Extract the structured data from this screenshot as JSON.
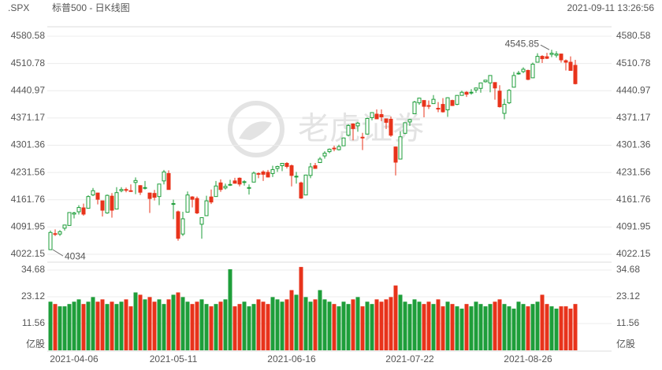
{
  "header": {
    "symbol": ".SPX",
    "title": "标普500 - 日K线图",
    "timestamp": "2021-09-11 13:26:56"
  },
  "watermark": "老虎证券",
  "chart_data": {
    "type": "candlestick",
    "categories": [
      null,
      "2021-04-06",
      null,
      null,
      null,
      null,
      null,
      null,
      null,
      null,
      null,
      null,
      null,
      null,
      null,
      null,
      null,
      null,
      null,
      null,
      null,
      null,
      null,
      null,
      null,
      null,
      "2021-05-11",
      null,
      null,
      null,
      null,
      null,
      null,
      null,
      null,
      null,
      null,
      null,
      null,
      null,
      null,
      null,
      null,
      null,
      null,
      null,
      null,
      null,
      null,
      null,
      null,
      "2021-06-16",
      null,
      null,
      null,
      null,
      null,
      null,
      null,
      null,
      null,
      null,
      null,
      null,
      null,
      null,
      null,
      null,
      null,
      null,
      null,
      null,
      null,
      null,
      null,
      null,
      "2021-07-22",
      null,
      null,
      null,
      null,
      null,
      null,
      null,
      null,
      null,
      null,
      null,
      null,
      null,
      null,
      null,
      null,
      null,
      null,
      null,
      null,
      null,
      null,
      null,
      null,
      "2021-08-26",
      null,
      null,
      null,
      null,
      null,
      null,
      null,
      null,
      null,
      null
    ],
    "open": [
      4034,
      4075,
      4074,
      4089,
      4096,
      4125,
      4131,
      4141,
      4140,
      4174,
      4179,
      4159,
      4128,
      4171,
      4138,
      4185,
      4188,
      4185,
      4206,
      4198,
      4191,
      4179,
      4178,
      4170,
      4210,
      4229,
      4151,
      4131,
      4074,
      4130,
      4169,
      4165,
      4099,
      4121,
      4169,
      4170,
      4205,
      4192,
      4201,
      4210,
      4217,
      4207,
      4191,
      4207,
      4229,
      4233,
      4232,
      4229,
      4242,
      4249,
      4255,
      4249,
      4220,
      4205,
      4174,
      4224,
      4249,
      4257,
      4274,
      4285,
      4294,
      4290,
      4300,
      4327,
      4356,
      4351,
      4322,
      4330,
      4372,
      4381,
      4380,
      4369,
      4368,
      4297,
      4266,
      4332,
      4361,
      4382,
      4410,
      4416,
      4403,
      4408,
      4396,
      4406,
      4392,
      4416,
      4406,
      4429,
      4437,
      4436,
      4443,
      4447,
      4464,
      4461,
      4462,
      4440,
      4383,
      4410,
      4450,
      4484,
      4490,
      4493,
      4474,
      4514,
      4529,
      4528,
      4534,
      4532,
      4535,
      4518,
      4514,
      4506
    ],
    "high": [
      4083,
      4086,
      4084,
      4098,
      4129,
      4131,
      4148,
      4152,
      4173,
      4192,
      4180,
      4159,
      4175,
      4179,
      4194,
      4194,
      4193,
      4201,
      4219,
      4199,
      4210,
      4180,
      4187,
      4202,
      4238,
      4237,
      4162,
      4134,
      4131,
      4183,
      4171,
      4170,
      4117,
      4172,
      4188,
      4210,
      4214,
      4203,
      4213,
      4218,
      4219,
      4212,
      4201,
      4234,
      4232,
      4237,
      4238,
      4249,
      4249,
      4256,
      4258,
      4252,
      4233,
      4208,
      4226,
      4256,
      4256,
      4271,
      4286,
      4293,
      4300,
      4303,
      4321,
      4355,
      4357,
      4361,
      4333,
      4372,
      4386,
      4393,
      4393,
      4370,
      4375,
      4298,
      4337,
      4359,
      4369,
      4415,
      4423,
      4416,
      4416,
      4430,
      4412,
      4422,
      4424,
      4418,
      4429,
      4441,
      4440,
      4445,
      4449,
      4461,
      4468,
      4480,
      4462,
      4455,
      4420,
      4445,
      4489,
      4492,
      4501,
      4495,
      4513,
      4537,
      4532,
      4538,
      4545.85,
      4542,
      4536,
      4521,
      4529,
      4520
    ],
    "low": [
      4034,
      4069,
      4069,
      4083,
      4095,
      4114,
      4124,
      4121,
      4140,
      4171,
      4150,
      4119,
      4126,
      4116,
      4138,
      4181,
      4181,
      4182,
      4176,
      4174,
      4188,
      4128,
      4160,
      4148,
      4201,
      4188,
      4112,
      4056.88,
      4069,
      4130,
      4142,
      4125,
      4062,
      4121,
      4151,
      4170,
      4182,
      4188,
      4197,
      4203,
      4196,
      4198,
      4175,
      4207,
      4217,
      4210,
      4219,
      4220,
      4233,
      4235,
      4242,
      4196,
      4203,
      4164,
      4174,
      4217,
      4241,
      4256,
      4267,
      4281,
      4286,
      4288,
      4300,
      4324,
      4314,
      4336,
      4289,
      4329,
      4365,
      4368,
      4363,
      4343,
      4323,
      4224,
      4265,
      4330,
      4351,
      4382,
      4405,
      4373,
      4394,
      4408,
      4386,
      4385,
      4374,
      4402,
      4404,
      4429,
      4425,
      4431,
      4436,
      4436,
      4462,
      4437,
      4418,
      4398,
      4368,
      4407,
      4450,
      4482,
      4486,
      4468,
      4474,
      4514,
      4512,
      4522,
      4527,
      4526,
      4513,
      4493,
      4493,
      4457
    ],
    "close": [
      4078,
      4074,
      4080,
      4097,
      4129,
      4128,
      4142,
      4125,
      4170,
      4185,
      4163,
      4135,
      4173,
      4135,
      4180,
      4188,
      4187,
      4183,
      4211,
      4181,
      4193,
      4165,
      4168,
      4202,
      4233,
      4188,
      4152,
      4063,
      4113,
      4174,
      4163,
      4128,
      4116,
      4159,
      4156,
      4197,
      4188,
      4196,
      4201,
      4204,
      4202,
      4208,
      4193,
      4230,
      4227,
      4227,
      4220,
      4239,
      4247,
      4255,
      4247,
      4224,
      4222,
      4166,
      4225,
      4246,
      4242,
      4266,
      4281,
      4291,
      4292,
      4298,
      4320,
      4352,
      4344,
      4358,
      4321,
      4370,
      4385,
      4369,
      4374,
      4360,
      4327,
      4258,
      4323,
      4359,
      4367,
      4412,
      4422,
      4401,
      4401,
      4419,
      4395,
      4387,
      4423,
      4403,
      4429,
      4437,
      4432,
      4437,
      4448,
      4461,
      4468,
      4480,
      4448,
      4400,
      4406,
      4442,
      4480,
      4486,
      4496,
      4470,
      4509,
      4529,
      4523,
      4524,
      4537,
      4535,
      4520,
      4514,
      4493,
      4459
    ],
    "up_color": "#1e9e3a",
    "down_color": "#e8331b",
    "ylim": [
      4022.15,
      4580.58
    ],
    "yticks": [
      4022.15,
      4091.95,
      4161.76,
      4231.56,
      4301.36,
      4371.17,
      4440.97,
      4510.78,
      4580.58
    ],
    "grid": true,
    "volume": {
      "unit": "亿股",
      "values": [
        21,
        20,
        19,
        19,
        20,
        21,
        22,
        20,
        21,
        23,
        21,
        22,
        20,
        21,
        20,
        21,
        22,
        19,
        25,
        24,
        22,
        23,
        21,
        22,
        20,
        22,
        24,
        25,
        23,
        21,
        20,
        21,
        22,
        20,
        19,
        20,
        21,
        22,
        35,
        19,
        20,
        21,
        19,
        20,
        22,
        21,
        20,
        23,
        22,
        21,
        22,
        26,
        24,
        36,
        23,
        21,
        22,
        26,
        22,
        21,
        20,
        19,
        21,
        20,
        22,
        23,
        19,
        21,
        20,
        22,
        21,
        22,
        23,
        28,
        24,
        21,
        20,
        22,
        21,
        20,
        21,
        20,
        22,
        19,
        21,
        20,
        19,
        18,
        20,
        19,
        21,
        20,
        19,
        20,
        21,
        22,
        20,
        19,
        18,
        21,
        20,
        19,
        20,
        21,
        24,
        20,
        19,
        18,
        19,
        19,
        18,
        20
      ],
      "ylim": [
        0,
        34.68
      ],
      "yticks": [
        11.56,
        23.12,
        34.68
      ]
    }
  }
}
